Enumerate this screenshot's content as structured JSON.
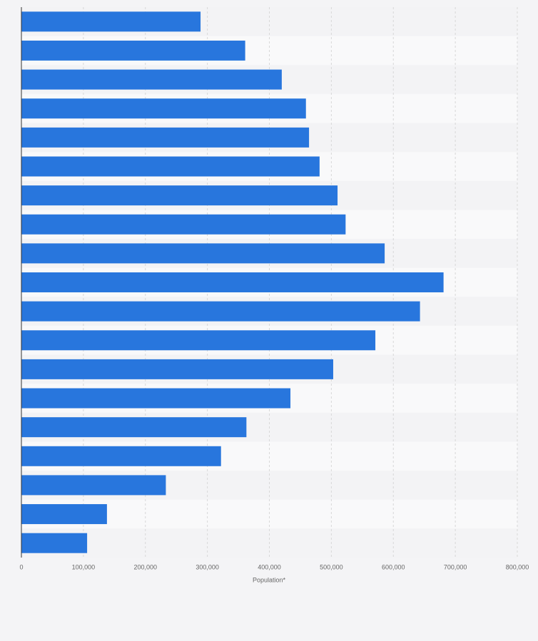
{
  "chart_data": {
    "type": "bar",
    "orientation": "horizontal",
    "x_label": "Population*",
    "categories": [
      null,
      null,
      null,
      null,
      null,
      null,
      null,
      null,
      null,
      null,
      null,
      null,
      null,
      null,
      null,
      null,
      null,
      null,
      null
    ],
    "values": [
      289000,
      361000,
      420000,
      459000,
      464000,
      481000,
      510000,
      523000,
      586000,
      681000,
      643000,
      571000,
      503000,
      434000,
      363000,
      322000,
      233000,
      138000,
      106000
    ],
    "color": "#2876dd",
    "xlim": [
      0,
      800000
    ],
    "xticks": [
      0,
      {
        "value": 100000,
        "label": "100,000"
      },
      {
        "value": 200000,
        "label": "200,000"
      },
      {
        "value": 300000,
        "label": "300,000"
      },
      {
        "value": 400000,
        "label": "400,000"
      },
      {
        "value": 500000,
        "label": "500,000"
      },
      {
        "value": 600000,
        "label": "600,000"
      },
      {
        "value": 700000,
        "label": "700,000"
      },
      {
        "value": 800000,
        "label": "800,000"
      }
    ],
    "grid": true
  }
}
